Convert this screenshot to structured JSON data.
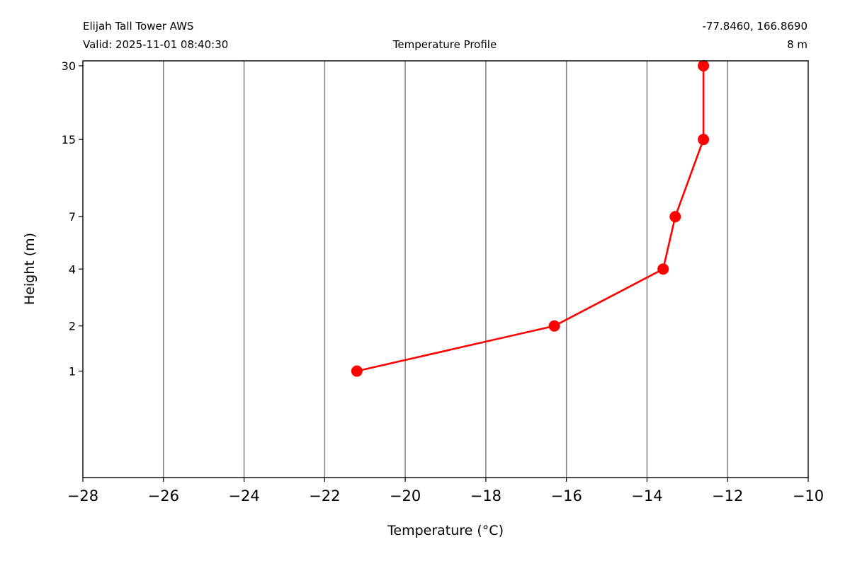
{
  "header": {
    "station": "Elijah Tall Tower AWS",
    "valid": "Valid: 2025-11-01 08:40:30",
    "title": "Temperature Profile",
    "coords": "-77.8460, 166.8690",
    "height": "8 m"
  },
  "chart_data": {
    "type": "line",
    "title": "Temperature Profile",
    "xlabel": "Temperature (°C)",
    "ylabel": "Height (m)",
    "xlim": [
      -28,
      -10
    ],
    "ylim": [
      -0.3,
      31.4
    ],
    "xticks": [
      -28,
      -26,
      -24,
      -22,
      -20,
      -18,
      -16,
      -14,
      -12,
      -10
    ],
    "xtick_labels": [
      "−28",
      "−26",
      "−24",
      "−22",
      "−20",
      "−18",
      "−16",
      "−14",
      "−12",
      "−10"
    ],
    "yticks": [
      1,
      2,
      4,
      7,
      15,
      30
    ],
    "ytick_labels": [
      "1",
      "2",
      "4",
      "7",
      "15",
      "30"
    ],
    "y_scale": "symlog",
    "grid": "vertical",
    "series": [
      {
        "color": "#ff0000",
        "points": [
          {
            "x": -21.2,
            "y": 1
          },
          {
            "x": -16.3,
            "y": 2
          },
          {
            "x": -13.6,
            "y": 4
          },
          {
            "x": -13.3,
            "y": 7
          },
          {
            "x": -12.6,
            "y": 15
          },
          {
            "x": -12.6,
            "y": 30
          }
        ]
      }
    ]
  }
}
